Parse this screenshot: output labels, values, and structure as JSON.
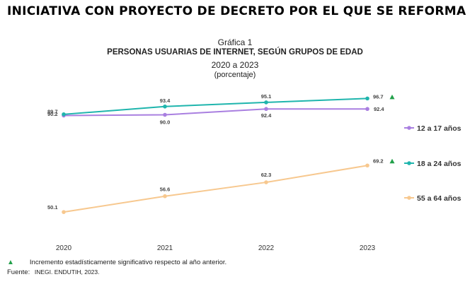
{
  "document": {
    "heading": "INICIATIVA CON PROYECTO DE DECRETO POR EL QUE SE REFORMA EL"
  },
  "chart_data": {
    "type": "line",
    "label": "Gráfica 1",
    "title": "PERSONAS USUARIAS DE INTERNET, SEGÚN GRUPOS DE EDAD",
    "subtitle": "2020 a 2023",
    "unit": "(porcentaje)",
    "categories": [
      "2020",
      "2021",
      "2022",
      "2023"
    ],
    "ylim": [
      40,
      100
    ],
    "grid": false,
    "legend_position": "right",
    "series": [
      {
        "name": "12 a 17 años",
        "color": "#a97fe0",
        "values": [
          89.7,
          90.0,
          92.4,
          92.4
        ],
        "labels": [
          "89.7",
          "90.0",
          "92.4",
          "92.4"
        ],
        "significant": [
          false,
          false,
          false,
          false
        ]
      },
      {
        "name": "18 a 24 años",
        "color": "#1fb5ad",
        "values": [
          90.2,
          93.4,
          95.1,
          96.7
        ],
        "labels": [
          "90.2",
          "93.4",
          "95.1",
          "96.7"
        ],
        "significant": [
          false,
          false,
          false,
          true
        ]
      },
      {
        "name": "55 a 64 años",
        "color": "#f7c88f",
        "values": [
          50.1,
          56.6,
          62.3,
          69.2
        ],
        "labels": [
          "50.1",
          "56.6",
          "62.3",
          "69.2"
        ],
        "significant": [
          false,
          false,
          false,
          true
        ]
      }
    ],
    "significance_color": "#22a04a"
  },
  "footnote": {
    "marker": "▲",
    "text": "Incremento estadísticamente significativo respecto al año anterior."
  },
  "source": {
    "label": "Fuente:",
    "text": "INEGI. ENDUTIH, 2023."
  }
}
